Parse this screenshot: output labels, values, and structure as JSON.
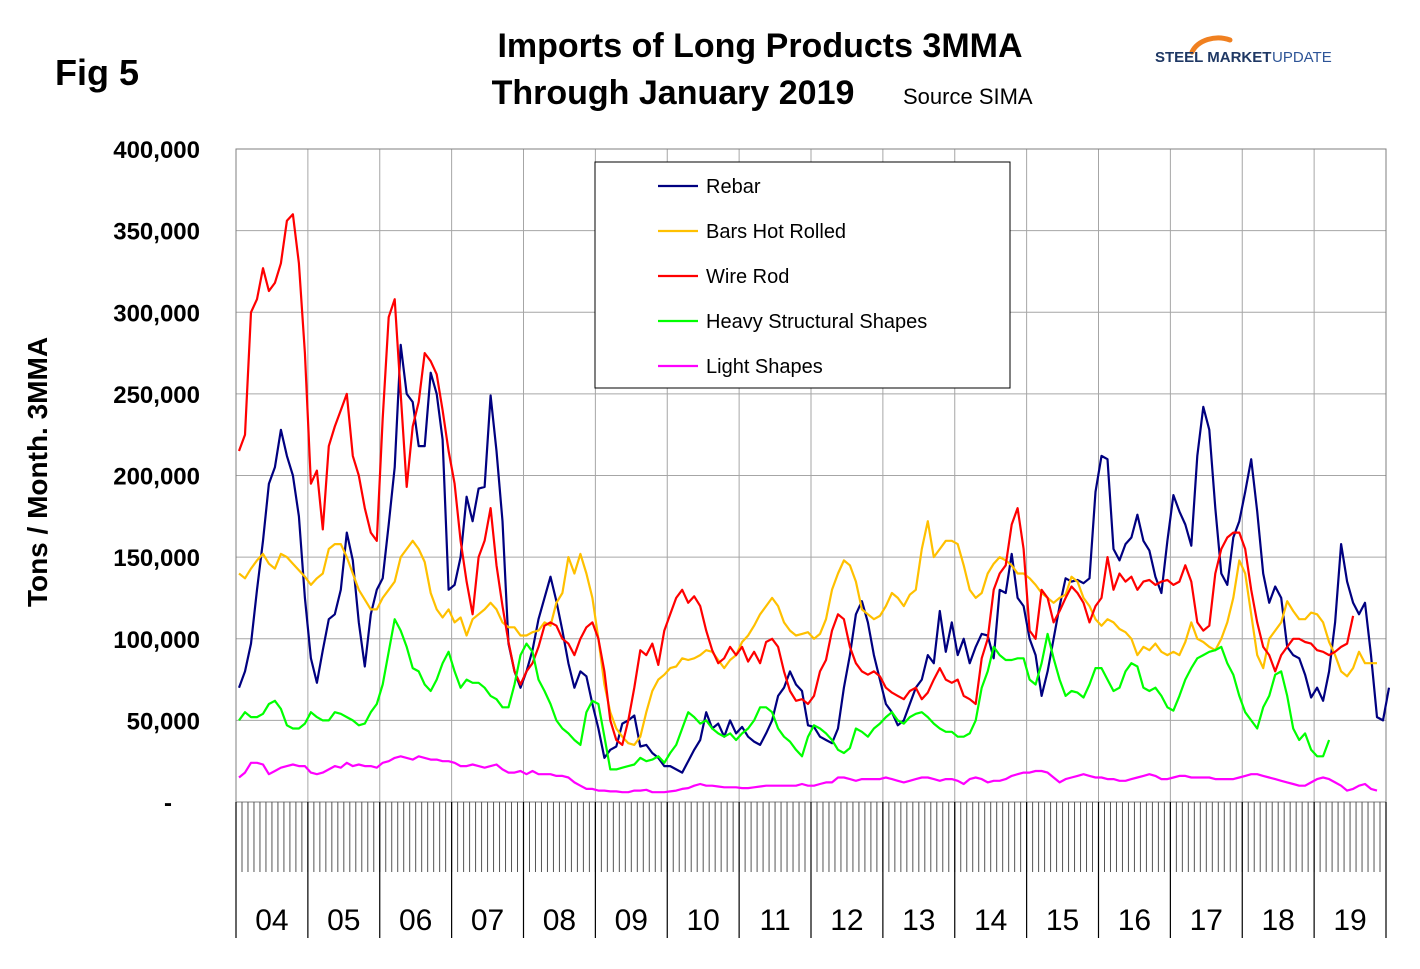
{
  "figure_label": "Fig 5",
  "title_line1": "Imports of Long Products 3MMA",
  "title_line2": "Through January 2019",
  "source_text": "Source SIMA",
  "logo": {
    "bold": "STEEL MARKET",
    "light": "UPDATE",
    "accent_color": "#f08020"
  },
  "chart_data": {
    "type": "line",
    "ylabel": "Tons / Month. 3MMA",
    "ylim": [
      0,
      400000
    ],
    "yticks": [
      0,
      50000,
      100000,
      150000,
      200000,
      250000,
      300000,
      350000,
      400000
    ],
    "ytick_labels": [
      "-",
      "50,000",
      "100,000",
      "150,000",
      "200,000",
      "250,000",
      "300,000",
      "350,000",
      "400,000"
    ],
    "x_start": "2004-01",
    "x_end": "2019-12",
    "year_labels": [
      "04",
      "05",
      "06",
      "07",
      "08",
      "09",
      "10",
      "11",
      "12",
      "13",
      "14",
      "15",
      "16",
      "17",
      "18",
      "19"
    ],
    "grid": true,
    "legend_position": "top-center",
    "series": [
      {
        "name": "Rebar",
        "color": "#000080",
        "values": [
          70000,
          80000,
          97000,
          130000,
          160000,
          195000,
          205000,
          228000,
          212000,
          200000,
          175000,
          125000,
          88000,
          73000,
          93000,
          112000,
          115000,
          130000,
          165000,
          148000,
          110000,
          83000,
          115000,
          130000,
          137000,
          170000,
          205000,
          280000,
          250000,
          245000,
          218000,
          218000,
          263000,
          250000,
          222000,
          130000,
          133000,
          150000,
          187000,
          172000,
          192000,
          193000,
          249000,
          215000,
          172000,
          97000,
          80000,
          70000,
          80000,
          93000,
          112000,
          125000,
          138000,
          123000,
          105000,
          85000,
          70000,
          80000,
          77000,
          60000,
          45000,
          27000,
          32000,
          34000,
          48000,
          50000,
          53000,
          34000,
          35000,
          30000,
          27000,
          22000,
          22000,
          20000,
          18000,
          25000,
          32000,
          38000,
          55000,
          45000,
          48000,
          40000,
          50000,
          42000,
          46000,
          40000,
          37000,
          35000,
          42000,
          50000,
          65000,
          70000,
          80000,
          72000,
          68000,
          47000,
          46000,
          40000,
          38000,
          36000,
          45000,
          70000,
          90000,
          115000,
          123000,
          110000,
          90000,
          75000,
          60000,
          55000,
          47000,
          50000,
          60000,
          70000,
          75000,
          90000,
          85000,
          117000,
          92000,
          110000,
          90000,
          100000,
          85000,
          95000,
          103000,
          102000,
          88000,
          130000,
          128000,
          152000,
          125000,
          120000,
          100000,
          90000,
          65000,
          80000,
          100000,
          120000,
          137000,
          135000,
          136000,
          134000,
          137000,
          190000,
          212000,
          210000,
          155000,
          148000,
          158000,
          162000,
          176000,
          160000,
          154000,
          138000,
          128000,
          160000,
          188000,
          178000,
          170000,
          157000,
          212000,
          242000,
          228000,
          180000,
          140000,
          133000,
          162000,
          172000,
          190000,
          210000,
          178000,
          140000,
          122000,
          132000,
          125000,
          95000,
          90000,
          88000,
          78000,
          64000,
          70000,
          62000,
          80000,
          110000,
          158000,
          135000,
          122000,
          115000,
          122000,
          90000,
          52000,
          50000,
          70000
        ]
      },
      {
        "name": "Bars Hot Rolled",
        "color": "#ffc000",
        "values": [
          140000,
          137000,
          143000,
          148000,
          152000,
          146000,
          143000,
          152000,
          150000,
          146000,
          142000,
          138000,
          133000,
          137000,
          140000,
          155000,
          158000,
          158000,
          150000,
          140000,
          130000,
          124000,
          118000,
          118000,
          125000,
          130000,
          135000,
          150000,
          155000,
          160000,
          155000,
          147000,
          128000,
          118000,
          113000,
          118000,
          110000,
          113000,
          102000,
          112000,
          115000,
          118000,
          122000,
          118000,
          110000,
          107000,
          107000,
          102000,
          102000,
          104000,
          105000,
          110000,
          108000,
          122000,
          128000,
          150000,
          140000,
          152000,
          140000,
          125000,
          100000,
          72000,
          55000,
          45000,
          40000,
          36000,
          35000,
          40000,
          55000,
          68000,
          75000,
          78000,
          82000,
          83000,
          88000,
          87000,
          88000,
          90000,
          93000,
          92000,
          87000,
          82000,
          87000,
          90000,
          98000,
          102000,
          108000,
          115000,
          120000,
          125000,
          120000,
          110000,
          105000,
          102000,
          103000,
          104000,
          100000,
          103000,
          112000,
          130000,
          140000,
          148000,
          145000,
          135000,
          118000,
          115000,
          112000,
          114000,
          120000,
          128000,
          125000,
          120000,
          127000,
          130000,
          155000,
          172000,
          150000,
          155000,
          160000,
          160000,
          158000,
          145000,
          130000,
          125000,
          128000,
          140000,
          146000,
          150000,
          148000,
          145000,
          140000,
          140000,
          137000,
          133000,
          128000,
          125000,
          122000,
          125000,
          127000,
          138000,
          135000,
          125000,
          120000,
          112000,
          108000,
          112000,
          110000,
          106000,
          104000,
          100000,
          90000,
          95000,
          93000,
          97000,
          92000,
          90000,
          92000,
          90000,
          98000,
          110000,
          100000,
          98000,
          95000,
          93000,
          100000,
          110000,
          125000,
          148000,
          140000,
          115000,
          90000,
          82000,
          100000,
          105000,
          110000,
          123000,
          117000,
          112000,
          112000,
          116000,
          115000,
          110000,
          98000,
          90000,
          80000,
          77000,
          82000,
          92000,
          85000,
          85000,
          85000
        ]
      },
      {
        "name": "Wire Rod",
        "color": "#ff0000",
        "values": [
          215000,
          225000,
          300000,
          308000,
          327000,
          313000,
          318000,
          330000,
          356000,
          360000,
          330000,
          275000,
          195000,
          203000,
          167000,
          218000,
          230000,
          240000,
          250000,
          212000,
          200000,
          180000,
          165000,
          160000,
          235000,
          297000,
          308000,
          250000,
          193000,
          230000,
          245000,
          275000,
          270000,
          262000,
          240000,
          215000,
          195000,
          160000,
          135000,
          115000,
          150000,
          160000,
          180000,
          145000,
          120000,
          98000,
          80000,
          72000,
          80000,
          85000,
          95000,
          108000,
          110000,
          108000,
          100000,
          97000,
          90000,
          100000,
          107000,
          110000,
          100000,
          80000,
          50000,
          38000,
          35000,
          50000,
          70000,
          93000,
          90000,
          97000,
          84000,
          105000,
          115000,
          125000,
          130000,
          122000,
          126000,
          120000,
          105000,
          93000,
          85000,
          88000,
          95000,
          90000,
          95000,
          86000,
          92000,
          85000,
          98000,
          100000,
          95000,
          80000,
          68000,
          62000,
          63000,
          60000,
          65000,
          80000,
          87000,
          105000,
          115000,
          112000,
          95000,
          85000,
          80000,
          78000,
          80000,
          77000,
          70000,
          67000,
          65000,
          63000,
          68000,
          70000,
          63000,
          67000,
          75000,
          82000,
          75000,
          73000,
          75000,
          65000,
          63000,
          60000,
          88000,
          100000,
          130000,
          140000,
          145000,
          170000,
          180000,
          155000,
          105000,
          100000,
          130000,
          125000,
          110000,
          117000,
          125000,
          132000,
          128000,
          122000,
          110000,
          120000,
          125000,
          150000,
          130000,
          140000,
          135000,
          138000,
          130000,
          135000,
          136000,
          133000,
          135000,
          136000,
          133000,
          135000,
          145000,
          135000,
          110000,
          105000,
          108000,
          140000,
          155000,
          162000,
          165000,
          165000,
          155000,
          130000,
          110000,
          95000,
          90000,
          80000,
          90000,
          95000,
          100000,
          100000,
          98000,
          97000,
          93000,
          92000,
          90000,
          92000,
          95000,
          97000,
          114000
        ]
      },
      {
        "name": "Heavy Structural Shapes",
        "color": "#00ff00",
        "values": [
          50000,
          55000,
          52000,
          52000,
          54000,
          60000,
          62000,
          57000,
          47000,
          45000,
          45000,
          48000,
          55000,
          52000,
          50000,
          50000,
          55000,
          54000,
          52000,
          50000,
          47000,
          48000,
          55000,
          60000,
          72000,
          92000,
          112000,
          105000,
          95000,
          82000,
          80000,
          72000,
          68000,
          75000,
          85000,
          92000,
          80000,
          70000,
          75000,
          73000,
          73000,
          70000,
          65000,
          63000,
          58000,
          58000,
          72000,
          90000,
          97000,
          92000,
          75000,
          68000,
          60000,
          50000,
          45000,
          42000,
          38000,
          35000,
          55000,
          62000,
          60000,
          40000,
          20000,
          20000,
          21000,
          22000,
          23000,
          27000,
          25000,
          26000,
          28000,
          24000,
          30000,
          35000,
          45000,
          55000,
          52000,
          48000,
          50000,
          45000,
          42000,
          40000,
          42000,
          38000,
          42000,
          45000,
          50000,
          58000,
          58000,
          55000,
          45000,
          40000,
          37000,
          32000,
          28000,
          40000,
          47000,
          45000,
          42000,
          38000,
          32000,
          30000,
          33000,
          45000,
          43000,
          40000,
          45000,
          48000,
          52000,
          55000,
          50000,
          48000,
          52000,
          54000,
          55000,
          52000,
          48000,
          45000,
          43000,
          43000,
          40000,
          40000,
          42000,
          50000,
          70000,
          80000,
          95000,
          90000,
          87000,
          87000,
          88000,
          88000,
          75000,
          72000,
          85000,
          103000,
          88000,
          75000,
          65000,
          68000,
          67000,
          64000,
          72000,
          82000,
          82000,
          75000,
          68000,
          70000,
          80000,
          85000,
          83000,
          70000,
          68000,
          70000,
          65000,
          58000,
          56000,
          65000,
          75000,
          82000,
          88000,
          90000,
          92000,
          93000,
          95000,
          85000,
          78000,
          65000,
          55000,
          50000,
          45000,
          58000,
          65000,
          78000,
          80000,
          65000,
          45000,
          38000,
          42000,
          32000,
          28000,
          28000,
          38000
        ]
      },
      {
        "name": "Light Shapes",
        "color": "#ff00ff",
        "values": [
          15000,
          18000,
          24000,
          24000,
          23000,
          17000,
          19000,
          21000,
          22000,
          23000,
          22000,
          22000,
          18000,
          17000,
          18000,
          20000,
          22000,
          21000,
          24000,
          22000,
          23000,
          22000,
          22000,
          21000,
          24000,
          25000,
          27000,
          28000,
          27000,
          26000,
          28000,
          27000,
          26000,
          26000,
          25000,
          25000,
          24000,
          22000,
          22000,
          23000,
          22000,
          21000,
          22000,
          23000,
          20000,
          18000,
          18000,
          19000,
          17000,
          19000,
          17000,
          17000,
          17000,
          16000,
          16000,
          15000,
          12000,
          10000,
          8000,
          8000,
          7000,
          7000,
          6500,
          6500,
          6000,
          6000,
          7000,
          7000,
          7500,
          6000,
          6000,
          6000,
          6500,
          7000,
          8000,
          8500,
          10000,
          11000,
          10000,
          10000,
          9500,
          9000,
          9000,
          9000,
          8500,
          8500,
          9000,
          9500,
          10000,
          10000,
          10000,
          10000,
          10000,
          10000,
          11000,
          10000,
          10000,
          11000,
          12000,
          12000,
          15000,
          15000,
          14000,
          13000,
          14000,
          14000,
          14000,
          14000,
          15000,
          14000,
          13000,
          12000,
          13000,
          14000,
          15000,
          15000,
          14000,
          13000,
          14000,
          14000,
          13000,
          11000,
          14000,
          15000,
          14000,
          12000,
          13000,
          13000,
          14000,
          16000,
          17000,
          18000,
          18000,
          19000,
          19000,
          18000,
          15000,
          12000,
          14000,
          15000,
          16000,
          17000,
          16000,
          15000,
          15000,
          14000,
          14000,
          13000,
          13000,
          14000,
          15000,
          16000,
          17000,
          16000,
          14000,
          14000,
          15000,
          16000,
          16000,
          15000,
          15000,
          15000,
          15000,
          14000,
          14000,
          14000,
          14000,
          15000,
          16000,
          17000,
          17000,
          16000,
          15000,
          14000,
          13000,
          12000,
          11000,
          10000,
          10000,
          12000,
          14000,
          15000,
          14000,
          12000,
          10000,
          7000,
          8000,
          10000,
          11000,
          8000,
          7000
        ]
      }
    ]
  }
}
